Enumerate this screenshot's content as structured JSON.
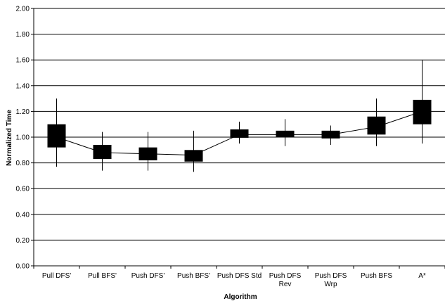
{
  "chart_data": {
    "type": "box",
    "xlabel": "Algorithm",
    "ylabel": "Normalized Time",
    "ylim": [
      0,
      2
    ],
    "y_ticks": [
      "0.00",
      "0.20",
      "0.40",
      "0.60",
      "0.80",
      "1.00",
      "1.20",
      "1.40",
      "1.60",
      "1.80",
      "2.00"
    ],
    "grid": "horizontal",
    "categories": [
      [
        "Pull DFS'"
      ],
      [
        "Pull BFS'"
      ],
      [
        "Push DFS'"
      ],
      [
        "Push BFS'"
      ],
      [
        "Push DFS Std"
      ],
      [
        "Push DFS",
        "Rev"
      ],
      [
        "Push DFS",
        "Wrp"
      ],
      [
        "Push BFS"
      ],
      [
        "A*"
      ]
    ],
    "series": [
      {
        "min": [
          0.77,
          0.74,
          0.74,
          0.73,
          0.95,
          0.93,
          0.94,
          0.93,
          0.95
        ],
        "q1": [
          0.92,
          0.83,
          0.82,
          0.81,
          0.995,
          1.0,
          0.99,
          1.02,
          1.1
        ],
        "median": [
          1.0,
          0.88,
          0.87,
          0.86,
          1.02,
          1.02,
          1.02,
          1.08,
          1.2
        ],
        "q3": [
          1.1,
          0.94,
          0.92,
          0.9,
          1.06,
          1.05,
          1.05,
          1.16,
          1.29
        ],
        "max": [
          1.3,
          1.04,
          1.04,
          1.05,
          1.12,
          1.14,
          1.09,
          1.3,
          1.6
        ]
      }
    ]
  }
}
